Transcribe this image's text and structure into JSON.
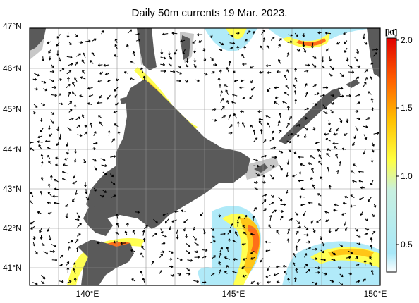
{
  "title": "Daily 50m currents 19 Mar. 2023.",
  "map": {
    "lat_labels": [
      "47°N",
      "46°N",
      "45°N",
      "44°N",
      "43°N",
      "42°N",
      "41°N"
    ],
    "lat_values": [
      47,
      46,
      45,
      44,
      43,
      42,
      41
    ],
    "lon_labels": [
      "140°E",
      "145°E",
      "150°E"
    ],
    "lon_values": [
      140,
      145,
      150
    ],
    "lon_range": [
      138,
      150
    ],
    "lat_range": [
      40.5,
      47
    ],
    "land_color": "#5a5a5a",
    "shelf_color": "#c8c8c8",
    "ocean_color": "#ffffff",
    "arrow_color": "#000000"
  },
  "colorbar": {
    "unit": "[kt]",
    "ticks": [
      "2.0",
      "1.5",
      "1.0",
      "0.5"
    ],
    "tick_values": [
      2.0,
      1.5,
      1.0,
      0.5
    ],
    "range": [
      0.3,
      2.0
    ],
    "colors": [
      "#ffffff",
      "#a8e8f8",
      "#ffff40",
      "#ffc000",
      "#ff6000",
      "#e00000"
    ]
  }
}
